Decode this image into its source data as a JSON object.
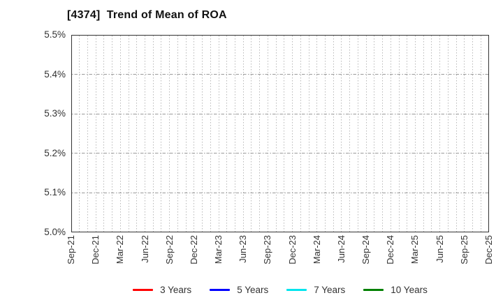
{
  "page": {
    "background": "#ffffff"
  },
  "chart_data": {
    "type": "line",
    "title": "[4374]  Trend of Mean of ROA",
    "x_tick_labels": [
      "Sep-21",
      "Dec-21",
      "Mar-22",
      "Jun-22",
      "Sep-22",
      "Dec-22",
      "Mar-23",
      "Jun-23",
      "Sep-23",
      "Dec-23",
      "Mar-24",
      "Jun-24",
      "Sep-24",
      "Dec-24",
      "Mar-25",
      "Jun-25",
      "Sep-25",
      "Dec-25"
    ],
    "x_minor_gridlines": "monthly",
    "months_per_label": 3,
    "y_tick_labels": [
      "5.0%",
      "5.1%",
      "5.2%",
      "5.3%",
      "5.4%",
      "5.5%"
    ],
    "ylim": [
      5.0,
      5.5
    ],
    "y_tick_step": 0.1,
    "ylabel_format": "percent",
    "grid": true,
    "legend_position": "bottom-center",
    "series": [
      {
        "name": "3 Years",
        "color": "#ff0000",
        "values": []
      },
      {
        "name": "5 Years",
        "color": "#0000ff",
        "values": []
      },
      {
        "name": "7 Years",
        "color": "#00e5ee",
        "values": []
      },
      {
        "name": "10 Years",
        "color": "#008000",
        "values": []
      }
    ],
    "no_series_data_visible": true,
    "colors": {
      "title_text": "#111111",
      "tick_text": "#333333",
      "frame": "#333333",
      "grid_vertical": "#b8b8b8",
      "grid_horizontal": "#999999"
    }
  }
}
